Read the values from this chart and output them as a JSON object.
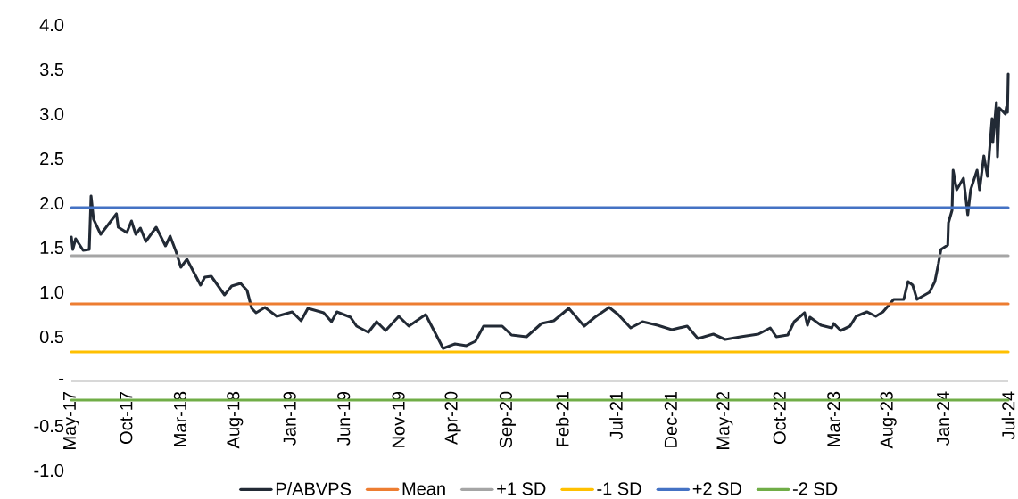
{
  "chart_data": {
    "type": "line",
    "xlim": [
      "2017-05-01",
      "2024-07-01"
    ],
    "xticks": [
      {
        "value": "2017-05",
        "label": "May-17"
      },
      {
        "value": "2017-10",
        "label": "Oct-17"
      },
      {
        "value": "2018-03",
        "label": "Mar-18"
      },
      {
        "value": "2018-08",
        "label": "Aug-18"
      },
      {
        "value": "2019-01",
        "label": "Jan-19"
      },
      {
        "value": "2019-06",
        "label": "Jun-19"
      },
      {
        "value": "2019-11",
        "label": "Nov-19"
      },
      {
        "value": "2020-04",
        "label": "Apr-20"
      },
      {
        "value": "2020-09",
        "label": "Sep-20"
      },
      {
        "value": "2021-02",
        "label": "Feb-21"
      },
      {
        "value": "2021-07",
        "label": "Jul-21"
      },
      {
        "value": "2021-12",
        "label": "Dec-21"
      },
      {
        "value": "2022-05",
        "label": "May-22"
      },
      {
        "value": "2022-10",
        "label": "Oct-22"
      },
      {
        "value": "2023-03",
        "label": "Mar-23"
      },
      {
        "value": "2023-08",
        "label": "Aug-23"
      },
      {
        "value": "2024-01",
        "label": "Jan-24"
      },
      {
        "value": "2024-07",
        "label": "Jul-24"
      }
    ],
    "ylim": [
      -1.0,
      4.0
    ],
    "yticks": [
      {
        "value": -1.0,
        "label": "-1.0"
      },
      {
        "value": -0.5,
        "label": "-0.5"
      },
      {
        "value": 0,
        "label": "-"
      },
      {
        "value": 0.5,
        "label": "0.5"
      },
      {
        "value": 1.0,
        "label": "1.0"
      },
      {
        "value": 1.5,
        "label": "1.5"
      },
      {
        "value": 2.0,
        "label": "2.0"
      },
      {
        "value": 2.5,
        "label": "2.5"
      },
      {
        "value": 3.0,
        "label": "3.0"
      },
      {
        "value": 3.5,
        "label": "3.5"
      },
      {
        "value": 4.0,
        "label": "4.0"
      }
    ],
    "legend": "bottom",
    "marker": "none",
    "line_style": "solid",
    "series": [
      {
        "name": "P/ABVPS",
        "color": "#222a35",
        "x": [
          "2017-05-01",
          "2017-05-05",
          "2017-05-13",
          "2017-06-03",
          "2017-06-20",
          "2017-06-25",
          "2017-07-02",
          "2017-07-22",
          "2017-09-04",
          "2017-09-09",
          "2017-10-03",
          "2017-10-16",
          "2017-10-28",
          "2017-11-10",
          "2017-11-25",
          "2017-12-24",
          "2018-01-19",
          "2018-02-01",
          "2018-02-18",
          "2018-03-03",
          "2018-03-20",
          "2018-04-27",
          "2018-05-09",
          "2018-05-27",
          "2018-07-03",
          "2018-07-23",
          "2018-08-17",
          "2018-09-04",
          "2018-09-17",
          "2018-09-29",
          "2018-10-24",
          "2018-11-26",
          "2019-01-08",
          "2019-02-02",
          "2019-02-21",
          "2019-04-06",
          "2019-04-28",
          "2019-05-13",
          "2019-06-20",
          "2019-07-07",
          "2019-08-09",
          "2019-09-01",
          "2019-09-26",
          "2019-11-02",
          "2019-11-30",
          "2020-01-16",
          "2020-03-05",
          "2020-04-07",
          "2020-05-09",
          "2020-06-03",
          "2020-06-26",
          "2020-08-17",
          "2020-09-12",
          "2020-10-24",
          "2020-12-05",
          "2021-01-08",
          "2021-02-19",
          "2021-04-03",
          "2021-05-03",
          "2021-06-12",
          "2021-07-07",
          "2021-08-11",
          "2021-09-13",
          "2021-10-25",
          "2021-12-04",
          "2022-01-16",
          "2022-02-15",
          "2022-03-30",
          "2022-05-02",
          "2022-06-14",
          "2022-08-03",
          "2022-09-05",
          "2022-09-22",
          "2022-10-24",
          "2022-11-11",
          "2022-12-10",
          "2022-12-18",
          "2022-12-25",
          "2023-01-25",
          "2023-02-24",
          "2023-03-01",
          "2023-03-21",
          "2023-04-16",
          "2023-05-03",
          "2023-06-02",
          "2023-06-27",
          "2023-07-17",
          "2023-08-16",
          "2023-09-13",
          "2023-09-25",
          "2023-10-08",
          "2023-10-20",
          "2023-11-24",
          "2023-12-09",
          "2023-12-19",
          "2023-12-26",
          "2024-01-14",
          "2024-01-16",
          "2024-01-26",
          "2024-01-29",
          "2024-02-08",
          "2024-02-27",
          "2024-03-10",
          "2024-03-18",
          "2024-04-05",
          "2024-04-12",
          "2024-04-24",
          "2024-05-04",
          "2024-05-17",
          "2024-05-19",
          "2024-05-29",
          "2024-06-01",
          "2024-06-06",
          "2024-06-23",
          "2024-06-26",
          "2024-06-29",
          "2024-07-01"
        ],
        "values": [
          1.62,
          1.48,
          1.6,
          1.47,
          1.48,
          2.08,
          1.82,
          1.65,
          1.88,
          1.73,
          1.67,
          1.8,
          1.65,
          1.72,
          1.57,
          1.73,
          1.52,
          1.63,
          1.45,
          1.28,
          1.37,
          1.08,
          1.17,
          1.18,
          0.97,
          1.07,
          1.1,
          1.02,
          0.82,
          0.77,
          0.83,
          0.73,
          0.78,
          0.68,
          0.82,
          0.77,
          0.67,
          0.78,
          0.72,
          0.62,
          0.55,
          0.67,
          0.57,
          0.73,
          0.62,
          0.75,
          0.37,
          0.42,
          0.4,
          0.45,
          0.62,
          0.62,
          0.52,
          0.5,
          0.65,
          0.68,
          0.82,
          0.62,
          0.72,
          0.83,
          0.75,
          0.6,
          0.67,
          0.63,
          0.58,
          0.62,
          0.48,
          0.53,
          0.47,
          0.5,
          0.53,
          0.6,
          0.5,
          0.52,
          0.67,
          0.77,
          0.63,
          0.72,
          0.63,
          0.6,
          0.65,
          0.57,
          0.62,
          0.73,
          0.78,
          0.73,
          0.78,
          0.92,
          0.92,
          1.12,
          1.08,
          0.92,
          1.0,
          1.12,
          1.32,
          1.48,
          1.53,
          1.78,
          1.92,
          2.37,
          2.15,
          2.28,
          1.87,
          2.15,
          2.37,
          2.15,
          2.53,
          2.3,
          2.95,
          2.68,
          3.13,
          2.52,
          3.07,
          3.0,
          3.08,
          3.02,
          3.45
        ]
      },
      {
        "name": "Mean",
        "color": "#ed7d31",
        "x": [
          "2017-05-01",
          "2024-07-01"
        ],
        "values": [
          0.87,
          0.87
        ]
      },
      {
        "name": "+1 SD",
        "color": "#a5a5a5",
        "x": [
          "2017-05-01",
          "2024-07-01"
        ],
        "values": [
          1.41,
          1.41
        ]
      },
      {
        "name": "-1 SD",
        "color": "#ffc000",
        "x": [
          "2017-05-01",
          "2024-07-01"
        ],
        "values": [
          0.33,
          0.33
        ]
      },
      {
        "name": "+2 SD",
        "color": "#4472c4",
        "x": [
          "2017-05-01",
          "2024-07-01"
        ],
        "values": [
          1.95,
          1.95
        ]
      },
      {
        "name": "-2 SD",
        "color": "#70ad47",
        "x": [
          "2017-05-01",
          "2024-07-01"
        ],
        "values": [
          -0.21,
          -0.21
        ]
      }
    ]
  }
}
